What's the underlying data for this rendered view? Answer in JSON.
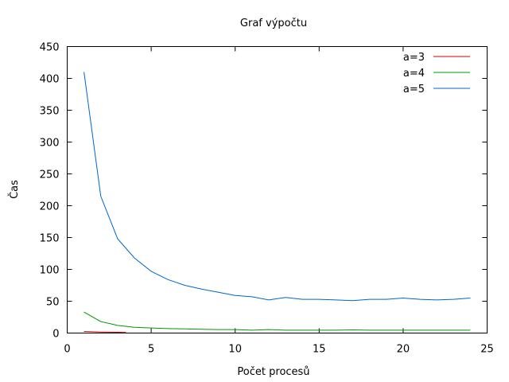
{
  "chart_data": {
    "type": "line",
    "title": "Graf výpočtu",
    "xlabel": "Počet procesů",
    "ylabel": "Čas",
    "xlim": [
      0,
      25
    ],
    "ylim": [
      0,
      450
    ],
    "xticks": [
      0,
      5,
      10,
      15,
      20,
      25
    ],
    "yticks": [
      0,
      50,
      100,
      150,
      200,
      250,
      300,
      350,
      400,
      450
    ],
    "grid": false,
    "legend_position": "top-right",
    "series": [
      {
        "name": "a=3",
        "color": "#d40000",
        "x": [
          1,
          2,
          3,
          3.5
        ],
        "y": [
          2.5,
          1.5,
          1.2,
          1.0
        ]
      },
      {
        "name": "a=4",
        "color": "#009900",
        "x": [
          1,
          2,
          3,
          4,
          5,
          6,
          7,
          8,
          9,
          10,
          11,
          12,
          13,
          14,
          15,
          16,
          17,
          18,
          19,
          20,
          21,
          22,
          23,
          24
        ],
        "y": [
          33,
          18,
          12,
          9,
          8,
          7,
          6.5,
          6,
          5.5,
          5.5,
          4.5,
          5.5,
          4.5,
          4.5,
          4.5,
          4.5,
          5,
          4.5,
          4.5,
          4.5,
          4.5,
          4.5,
          4.5,
          4.5
        ]
      },
      {
        "name": "a=5",
        "color": "#0066cc",
        "x": [
          1,
          2,
          3,
          4,
          5,
          6,
          7,
          8,
          9,
          10,
          11,
          12,
          13,
          14,
          15,
          16,
          17,
          18,
          19,
          20,
          21,
          22,
          23,
          24
        ],
        "y": [
          410,
          215,
          148,
          118,
          97,
          84,
          75,
          69,
          64,
          59,
          57,
          52,
          56,
          53,
          53,
          52,
          51,
          53,
          53,
          55,
          53,
          52,
          53,
          55
        ]
      }
    ]
  }
}
